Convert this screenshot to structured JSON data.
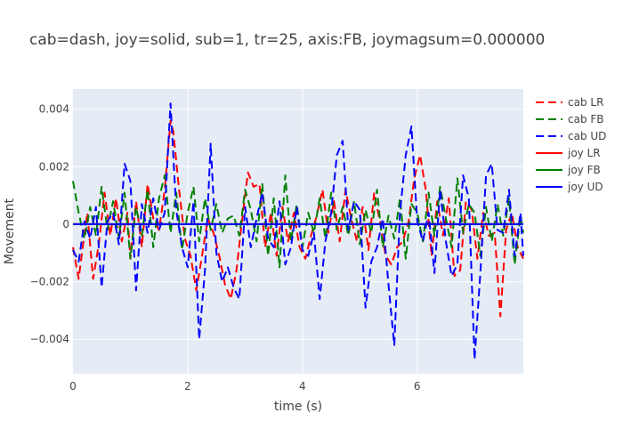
{
  "chart_data": {
    "type": "line",
    "title": "cab=dash, joy=solid, sub=1, tr=25, axis:FB, joymagsum=0.000000",
    "xlabel": "time (s)",
    "ylabel": "Movement",
    "xlim": [
      0,
      7.85
    ],
    "ylim": [
      -0.0052,
      0.0047
    ],
    "x_ticks": [
      0,
      2,
      4,
      6
    ],
    "x_tick_labels": [
      "0",
      "2",
      "4",
      "6"
    ],
    "y_ticks": [
      -0.004,
      -0.002,
      0,
      0.002,
      0.004
    ],
    "y_tick_labels": [
      "−0.004",
      "−0.002",
      "0",
      "0.002",
      "0.004"
    ],
    "grid": true,
    "legend_position": "top-right",
    "series": [
      {
        "name": "cab LR",
        "color": "#ff0000",
        "dash": "dash",
        "x": [
          0.0,
          0.1,
          0.15,
          0.25,
          0.35,
          0.45,
          0.55,
          0.65,
          0.75,
          0.85,
          0.95,
          1.0,
          1.1,
          1.2,
          1.3,
          1.4,
          1.5,
          1.6,
          1.7,
          1.75,
          1.85,
          1.95,
          2.05,
          2.15,
          2.25,
          2.35,
          2.45,
          2.55,
          2.65,
          2.75,
          2.85,
          2.95,
          3.05,
          3.15,
          3.25,
          3.35,
          3.45,
          3.55,
          3.65,
          3.75,
          3.85,
          3.95,
          4.05,
          4.15,
          4.25,
          4.35,
          4.45,
          4.55,
          4.65,
          4.75,
          4.85,
          4.95,
          5.05,
          5.15,
          5.25,
          5.35,
          5.45,
          5.55,
          5.65,
          5.75,
          5.85,
          5.95,
          6.05,
          6.15,
          6.25,
          6.35,
          6.45,
          6.55,
          6.65,
          6.75,
          6.85,
          6.95,
          7.05,
          7.15,
          7.25,
          7.35,
          7.45,
          7.55,
          7.65,
          7.75,
          7.85
        ],
        "y": [
          -0.0008,
          -0.0019,
          -0.0011,
          0.0004,
          -0.0019,
          -0.0007,
          0.0011,
          -0.0004,
          0.0009,
          -0.0006,
          0.0004,
          -0.0012,
          0.0008,
          -0.0008,
          0.0014,
          0.0002,
          -0.0002,
          0.0012,
          0.0036,
          0.0032,
          0.0012,
          -0.0005,
          -0.0011,
          -0.0023,
          -0.0011,
          0.0002,
          -0.0003,
          -0.0011,
          -0.0021,
          -0.0026,
          -0.0016,
          0.0002,
          0.0018,
          0.0013,
          0.0014,
          -0.0008,
          0.0004,
          -0.0011,
          0.0006,
          -0.0006,
          0.0004,
          -0.0008,
          -0.0012,
          -0.0004,
          0.0003,
          0.0012,
          -0.0003,
          0.0008,
          -0.0006,
          0.0012,
          0.0002,
          -0.0006,
          0.0006,
          -0.0009,
          0.0011,
          0.0001,
          -0.0011,
          -0.0014,
          -0.0008,
          -0.0006,
          0.0001,
          0.0016,
          0.0024,
          0.0012,
          -0.0011,
          0.0008,
          -0.0004,
          0.0009,
          -0.0018,
          -0.0016,
          0.0008,
          0.0005,
          -0.0012,
          0.0004,
          -0.0004,
          -0.0003,
          -0.0032,
          -0.0002,
          0.0004,
          -0.0008,
          -0.0012
        ]
      },
      {
        "name": "cab FB",
        "color": "#008000",
        "dash": "dash",
        "x": [
          0.0,
          0.1,
          0.2,
          0.3,
          0.4,
          0.5,
          0.6,
          0.7,
          0.8,
          0.9,
          1.0,
          1.1,
          1.2,
          1.3,
          1.4,
          1.5,
          1.6,
          1.7,
          1.8,
          1.9,
          2.0,
          2.1,
          2.2,
          2.3,
          2.4,
          2.5,
          2.6,
          2.7,
          2.8,
          2.9,
          3.0,
          3.1,
          3.2,
          3.3,
          3.4,
          3.5,
          3.6,
          3.7,
          3.8,
          3.9,
          4.0,
          4.1,
          4.2,
          4.3,
          4.4,
          4.5,
          4.6,
          4.7,
          4.8,
          4.9,
          5.0,
          5.1,
          5.2,
          5.3,
          5.4,
          5.5,
          5.6,
          5.7,
          5.8,
          5.9,
          6.0,
          6.1,
          6.2,
          6.3,
          6.4,
          6.5,
          6.6,
          6.7,
          6.8,
          6.9,
          7.0,
          7.1,
          7.2,
          7.3,
          7.4,
          7.5,
          7.6,
          7.7,
          7.8,
          7.85
        ],
        "y": [
          0.0015,
          0.0004,
          -0.0005,
          0.0006,
          -0.0004,
          0.0013,
          -0.0002,
          0.0008,
          -0.0005,
          0.0011,
          -0.0012,
          0.0006,
          -0.0004,
          0.0012,
          -0.0008,
          0.0009,
          0.0017,
          -0.0003,
          0.0011,
          -0.0009,
          0.0004,
          0.0013,
          -0.0006,
          0.0009,
          -0.0002,
          0.0007,
          -0.0003,
          0.0002,
          0.0003,
          -0.0004,
          0.0012,
          0.0005,
          -0.0006,
          0.0014,
          -0.0011,
          0.0009,
          -0.0015,
          0.0017,
          -0.0006,
          0.0007,
          -0.0008,
          0.0004,
          -0.0003,
          0.0009,
          -0.0005,
          0.0011,
          -0.0002,
          0.0006,
          -0.0004,
          0.0008,
          -0.0007,
          0.0005,
          -0.0003,
          0.0012,
          -0.0008,
          0.0003,
          -0.0005,
          0.0009,
          -0.0012,
          0.0007,
          0.0004,
          -0.0006,
          0.0011,
          -0.0004,
          0.0013,
          0.0002,
          -0.0008,
          0.0016,
          -0.0003,
          0.0007,
          0.0004,
          -0.0011,
          0.0006,
          -0.0006,
          0.0007,
          -0.0004,
          0.0009,
          -0.0014,
          0.0003,
          -0.0003
        ]
      },
      {
        "name": "cab UD",
        "color": "#0000ff",
        "dash": "dash",
        "x": [
          0.0,
          0.1,
          0.2,
          0.3,
          0.4,
          0.5,
          0.6,
          0.7,
          0.8,
          0.9,
          1.0,
          1.1,
          1.2,
          1.3,
          1.4,
          1.5,
          1.6,
          1.7,
          1.8,
          1.9,
          2.0,
          2.1,
          2.2,
          2.3,
          2.4,
          2.5,
          2.6,
          2.7,
          2.8,
          2.9,
          3.0,
          3.1,
          3.2,
          3.3,
          3.4,
          3.5,
          3.6,
          3.7,
          3.8,
          3.9,
          4.0,
          4.1,
          4.2,
          4.3,
          4.4,
          4.5,
          4.6,
          4.7,
          4.8,
          4.9,
          5.0,
          5.1,
          5.2,
          5.3,
          5.4,
          5.5,
          5.6,
          5.7,
          5.8,
          5.9,
          6.0,
          6.1,
          6.2,
          6.3,
          6.4,
          6.5,
          6.6,
          6.7,
          6.8,
          6.9,
          7.0,
          7.1,
          7.2,
          7.3,
          7.4,
          7.5,
          7.6,
          7.7,
          7.8,
          7.85
        ],
        "y": [
          -0.0009,
          -0.0013,
          0.0001,
          -0.0005,
          0.0006,
          -0.0022,
          0.0001,
          0.0004,
          -0.0007,
          0.0021,
          0.0015,
          -0.0023,
          0.0007,
          -0.0003,
          0.0009,
          -0.0002,
          0.0004,
          0.0042,
          0.0005,
          -0.0008,
          -0.0015,
          0.0008,
          -0.004,
          -0.0016,
          0.0028,
          -0.001,
          -0.002,
          -0.0015,
          -0.0022,
          -0.0026,
          0.0006,
          -0.0008,
          0.0002,
          0.0011,
          -0.0005,
          -0.0008,
          0.0008,
          -0.0014,
          -0.0008,
          0.0006,
          -0.0009,
          -0.0011,
          -0.0003,
          -0.0026,
          -0.0006,
          0.0004,
          0.0024,
          0.0029,
          -0.0002,
          0.0008,
          0.0005,
          -0.0029,
          -0.0013,
          -0.0008,
          0.0002,
          -0.0021,
          -0.0042,
          0.0004,
          0.0024,
          0.0034,
          0.0001,
          -0.0006,
          0.0004,
          -0.0017,
          0.0012,
          -0.0006,
          -0.0018,
          -0.0014,
          0.0017,
          0.0009,
          -0.0047,
          -0.0017,
          0.0017,
          0.0021,
          -0.0002,
          -0.0003,
          0.0012,
          -0.0011,
          0.0004,
          -0.0011
        ]
      },
      {
        "name": "joy LR",
        "color": "#ff0000",
        "dash": "solid",
        "x": [
          0,
          7.85
        ],
        "y": [
          0,
          0
        ]
      },
      {
        "name": "joy FB",
        "color": "#008000",
        "dash": "solid",
        "x": [
          0,
          7.85
        ],
        "y": [
          0,
          0
        ]
      },
      {
        "name": "joy UD",
        "color": "#0000ff",
        "dash": "solid",
        "x": [
          0,
          7.85
        ],
        "y": [
          0,
          0
        ]
      }
    ]
  }
}
